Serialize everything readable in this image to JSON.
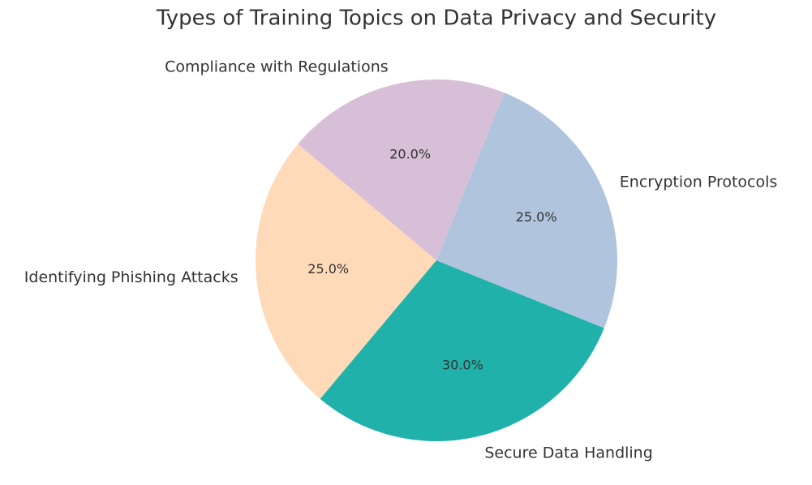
{
  "chart_data": {
    "type": "pie",
    "title": "Types of Training Topics on Data Privacy and Security",
    "categories": [
      "Identifying Phishing Attacks",
      "Secure Data Handling",
      "Encryption Protocols",
      "Compliance with Regulations"
    ],
    "values": [
      25,
      30,
      25,
      20
    ],
    "value_labels": [
      "25.0%",
      "30.0%",
      "25.0%",
      "20.0%"
    ],
    "colors": [
      "#ffdab9",
      "#20b2aa",
      "#b0c4de",
      "#d8bfd8"
    ],
    "startangle": 140
  }
}
